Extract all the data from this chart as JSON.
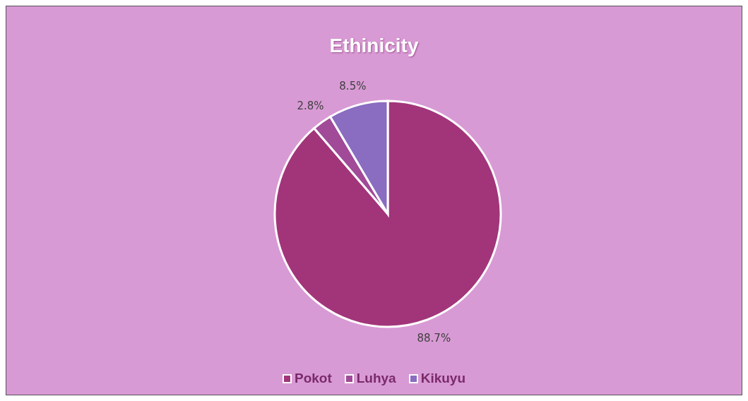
{
  "chart_data": {
    "type": "pie",
    "title": "Ethinicity",
    "categories": [
      "Pokot",
      "Luhya",
      "Kikuyu"
    ],
    "values": [
      88.7,
      2.8,
      8.5
    ],
    "value_labels": [
      "88.7%",
      "2.8%",
      "8.5%"
    ],
    "colors": [
      "#a2357a",
      "#a04a98",
      "#8a6cc0"
    ],
    "legend": "bottom"
  }
}
